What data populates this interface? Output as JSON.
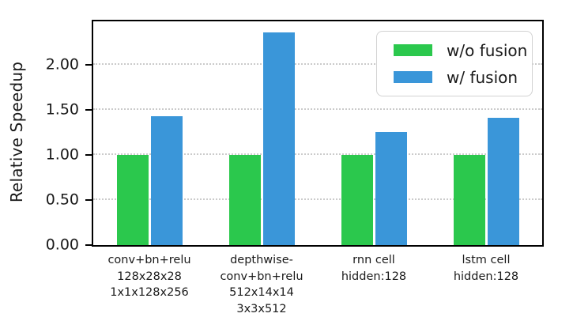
{
  "chart_data": {
    "type": "bar",
    "title": "",
    "xlabel": "",
    "ylabel": "Relative Speedup",
    "categories": [
      "conv+bn+relu 128x28x28 1x1x128x256",
      "depthwise- conv+bn+relu 512x14x14 3x3x512",
      "rnn cell hidden:128",
      "lstm cell hidden:128"
    ],
    "categories_lines": [
      [
        "conv+bn+relu",
        "128x28x28",
        "1x1x128x256"
      ],
      [
        "depthwise-",
        "conv+bn+relu",
        "512x14x14",
        "3x3x512"
      ],
      [
        "rnn cell",
        "hidden:128"
      ],
      [
        "lstm cell",
        "hidden:128"
      ]
    ],
    "series": [
      {
        "name": "w/o fusion",
        "color": "#2bc84d",
        "values": [
          1.0,
          1.0,
          1.0,
          1.0
        ]
      },
      {
        "name": "w/ fusion",
        "color": "#3a96d9",
        "values": [
          1.43,
          2.36,
          1.25,
          1.41
        ]
      }
    ],
    "yticks": [
      {
        "value": 0.0,
        "label": "0.00"
      },
      {
        "value": 0.5,
        "label": "0.50"
      },
      {
        "value": 1.0,
        "label": "1.00"
      },
      {
        "value": 1.5,
        "label": "1.50"
      },
      {
        "value": 2.0,
        "label": "2.00"
      }
    ],
    "ylim": [
      0,
      2.48
    ],
    "grid": "horizontal-dotted",
    "legend_position": "upper-right",
    "colors": {
      "grid": "#cbcbcb",
      "spine": "#000000",
      "text": "#1a1a1a",
      "legend_border": "#d2d2d2",
      "background": "#ffffff"
    }
  }
}
